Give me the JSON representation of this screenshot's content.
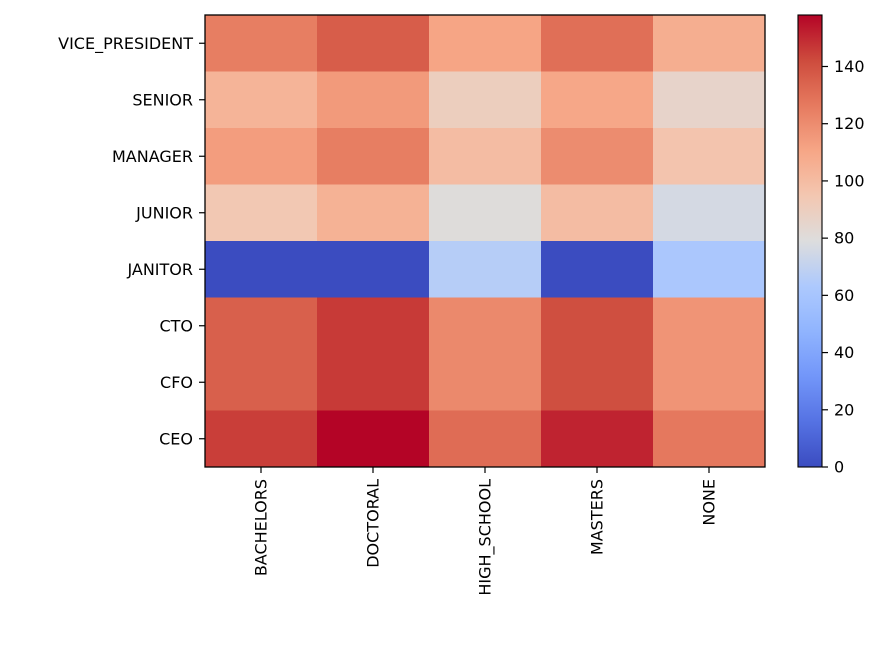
{
  "chart_data": {
    "type": "heatmap",
    "title": "",
    "xlabel": "",
    "ylabel": "",
    "x_categories": [
      "BACHELORS",
      "DOCTORAL",
      "HIGH_SCHOOL",
      "MASTERS",
      "NONE"
    ],
    "y_categories": [
      "VICE_PRESIDENT",
      "SENIOR",
      "MANAGER",
      "JUNIOR",
      "JANITOR",
      "CTO",
      "CFO",
      "CEO"
    ],
    "values": [
      [
        125,
        136,
        111,
        130,
        107
      ],
      [
        104,
        115,
        90,
        110,
        86
      ],
      [
        114,
        125,
        100,
        120,
        96
      ],
      [
        94,
        105,
        80,
        100,
        76
      ],
      [
        0,
        0,
        66,
        0,
        62
      ],
      [
        135,
        146,
        121,
        141,
        117
      ],
      [
        135,
        146,
        121,
        141,
        117
      ],
      [
        145,
        158,
        131,
        151,
        127
      ]
    ],
    "colormap": "coolwarm",
    "vmin": 0,
    "vmax": 158,
    "colorbar_ticks": [
      0,
      20,
      40,
      60,
      80,
      100,
      120,
      140
    ],
    "grid": false
  }
}
